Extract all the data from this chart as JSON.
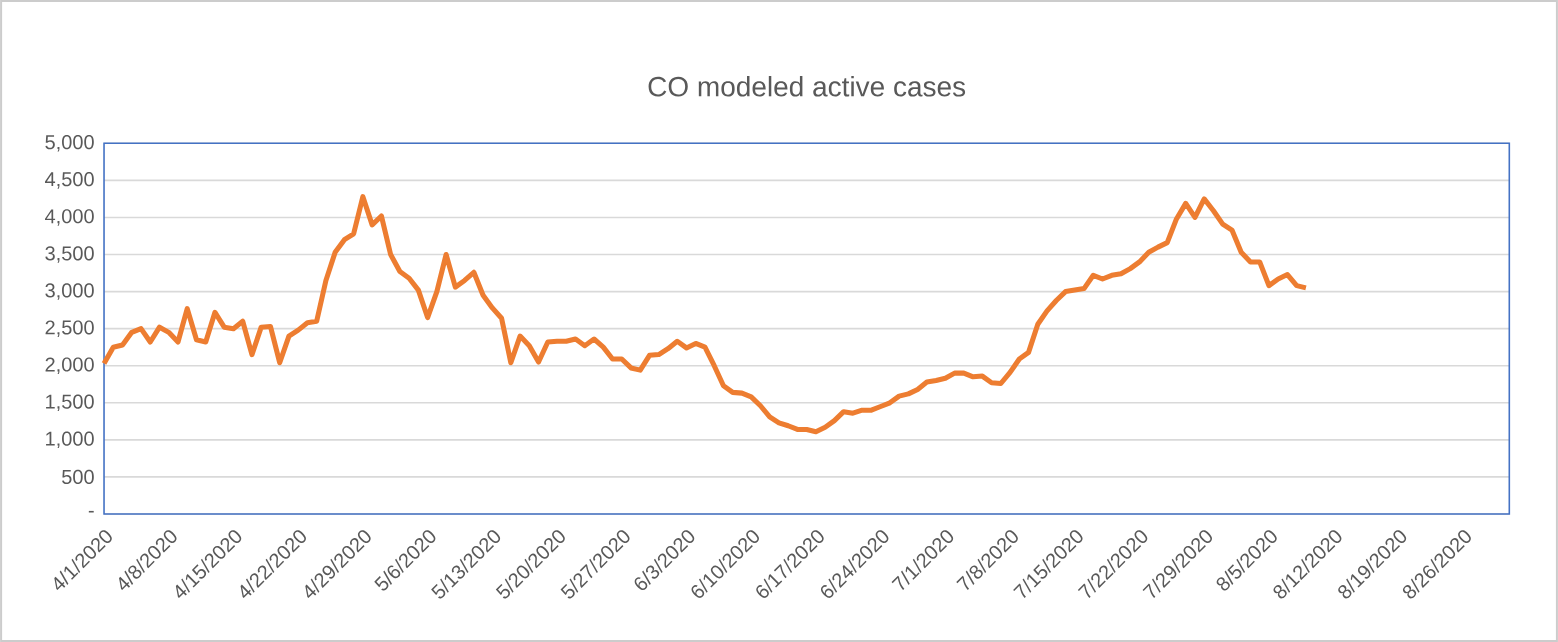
{
  "chart_data": {
    "type": "line",
    "title": "CO modeled active cases",
    "x": [
      "2020-04-01",
      "2020-04-02",
      "2020-04-03",
      "2020-04-04",
      "2020-04-05",
      "2020-04-06",
      "2020-04-07",
      "2020-04-08",
      "2020-04-09",
      "2020-04-10",
      "2020-04-11",
      "2020-04-12",
      "2020-04-13",
      "2020-04-14",
      "2020-04-15",
      "2020-04-16",
      "2020-04-17",
      "2020-04-18",
      "2020-04-19",
      "2020-04-20",
      "2020-04-21",
      "2020-04-22",
      "2020-04-23",
      "2020-04-24",
      "2020-04-25",
      "2020-04-26",
      "2020-04-27",
      "2020-04-28",
      "2020-04-29",
      "2020-04-30",
      "2020-05-01",
      "2020-05-02",
      "2020-05-03",
      "2020-05-04",
      "2020-05-05",
      "2020-05-06",
      "2020-05-07",
      "2020-05-08",
      "2020-05-09",
      "2020-05-10",
      "2020-05-11",
      "2020-05-12",
      "2020-05-13",
      "2020-05-14",
      "2020-05-15",
      "2020-05-16",
      "2020-05-17",
      "2020-05-18",
      "2020-05-19",
      "2020-05-20",
      "2020-05-21",
      "2020-05-22",
      "2020-05-23",
      "2020-05-24",
      "2020-05-25",
      "2020-05-26",
      "2020-05-27",
      "2020-05-28",
      "2020-05-29",
      "2020-05-30",
      "2020-05-31",
      "2020-06-01",
      "2020-06-02",
      "2020-06-03",
      "2020-06-04",
      "2020-06-05",
      "2020-06-06",
      "2020-06-07",
      "2020-06-08",
      "2020-06-09",
      "2020-06-10",
      "2020-06-11",
      "2020-06-12",
      "2020-06-13",
      "2020-06-14",
      "2020-06-15",
      "2020-06-16",
      "2020-06-17",
      "2020-06-18",
      "2020-06-19",
      "2020-06-20",
      "2020-06-21",
      "2020-06-22",
      "2020-06-23",
      "2020-06-24",
      "2020-06-25",
      "2020-06-26",
      "2020-06-27",
      "2020-06-28",
      "2020-06-29",
      "2020-06-30",
      "2020-07-01",
      "2020-07-02",
      "2020-07-03",
      "2020-07-04",
      "2020-07-05",
      "2020-07-06",
      "2020-07-07",
      "2020-07-08",
      "2020-07-09",
      "2020-07-10",
      "2020-07-11",
      "2020-07-12",
      "2020-07-13",
      "2020-07-14",
      "2020-07-15",
      "2020-07-16",
      "2020-07-17",
      "2020-07-18",
      "2020-07-19",
      "2020-07-20",
      "2020-07-21",
      "2020-07-22",
      "2020-07-23",
      "2020-07-24",
      "2020-07-25",
      "2020-07-26",
      "2020-07-27",
      "2020-07-28",
      "2020-07-29",
      "2020-07-30",
      "2020-07-31",
      "2020-08-01",
      "2020-08-02",
      "2020-08-03",
      "2020-08-04",
      "2020-08-05",
      "2020-08-06",
      "2020-08-07",
      "2020-08-08",
      "2020-08-09"
    ],
    "series": [
      {
        "color": "#ed7d31",
        "values": [
          2030,
          2250,
          2280,
          2450,
          2500,
          2320,
          2520,
          2450,
          2320,
          2770,
          2350,
          2320,
          2720,
          2520,
          2500,
          2600,
          2150,
          2520,
          2530,
          2040,
          2400,
          2480,
          2580,
          2600,
          3150,
          3530,
          3700,
          3780,
          4280,
          3900,
          4020,
          3500,
          3270,
          3180,
          3020,
          2650,
          3000,
          3500,
          3060,
          3150,
          3260,
          2950,
          2780,
          2640,
          2040,
          2400,
          2270,
          2050,
          2320,
          2330,
          2330,
          2360,
          2270,
          2360,
          2250,
          2090,
          2090,
          1970,
          1940,
          2140,
          2150,
          2230,
          2330,
          2240,
          2300,
          2250,
          2000,
          1730,
          1640,
          1630,
          1580,
          1460,
          1310,
          1230,
          1190,
          1140,
          1140,
          1110,
          1170,
          1260,
          1380,
          1360,
          1400,
          1400,
          1450,
          1500,
          1590,
          1620,
          1680,
          1780,
          1800,
          1830,
          1900,
          1900,
          1850,
          1860,
          1770,
          1760,
          1910,
          2090,
          2180,
          2560,
          2740,
          2880,
          3000,
          3020,
          3040,
          3220,
          3170,
          3220,
          3240,
          3310,
          3400,
          3530,
          3600,
          3660,
          3980,
          4190,
          4000,
          4250,
          4090,
          3910,
          3830,
          3530,
          3400,
          3400,
          3080,
          3170,
          3230,
          3080,
          3050
        ]
      }
    ],
    "xlim": [
      "2020-04-01",
      "2020-08-31"
    ],
    "xticks": [
      {
        "value": "2020-04-01",
        "label": "4/1/2020"
      },
      {
        "value": "2020-04-08",
        "label": "4/8/2020"
      },
      {
        "value": "2020-04-15",
        "label": "4/15/2020"
      },
      {
        "value": "2020-04-22",
        "label": "4/22/2020"
      },
      {
        "value": "2020-04-29",
        "label": "4/29/2020"
      },
      {
        "value": "2020-05-06",
        "label": "5/6/2020"
      },
      {
        "value": "2020-05-13",
        "label": "5/13/2020"
      },
      {
        "value": "2020-05-20",
        "label": "5/20/2020"
      },
      {
        "value": "2020-05-27",
        "label": "5/27/2020"
      },
      {
        "value": "2020-06-03",
        "label": "6/3/2020"
      },
      {
        "value": "2020-06-10",
        "label": "6/10/2020"
      },
      {
        "value": "2020-06-17",
        "label": "6/17/2020"
      },
      {
        "value": "2020-06-24",
        "label": "6/24/2020"
      },
      {
        "value": "2020-07-01",
        "label": "7/1/2020"
      },
      {
        "value": "2020-07-08",
        "label": "7/8/2020"
      },
      {
        "value": "2020-07-15",
        "label": "7/15/2020"
      },
      {
        "value": "2020-07-22",
        "label": "7/22/2020"
      },
      {
        "value": "2020-07-29",
        "label": "7/29/2020"
      },
      {
        "value": "2020-08-05",
        "label": "8/5/2020"
      },
      {
        "value": "2020-08-12",
        "label": "8/12/2020"
      },
      {
        "value": "2020-08-19",
        "label": "8/19/2020"
      },
      {
        "value": "2020-08-26",
        "label": "8/26/2020"
      }
    ],
    "ylim": [
      0,
      5000
    ],
    "yticks": [
      {
        "value": 0,
        "label": "-"
      },
      {
        "value": 500,
        "label": "500"
      },
      {
        "value": 1000,
        "label": "1,000"
      },
      {
        "value": 1500,
        "label": "1,500"
      },
      {
        "value": 2000,
        "label": "2,000"
      },
      {
        "value": 2500,
        "label": "2,500"
      },
      {
        "value": 3000,
        "label": "3,000"
      },
      {
        "value": 3500,
        "label": "3,500"
      },
      {
        "value": 4000,
        "label": "4,000"
      },
      {
        "value": 4500,
        "label": "4,500"
      },
      {
        "value": 5000,
        "label": "5,000"
      }
    ],
    "grid": "y",
    "marker": "none",
    "line_style": "solid"
  }
}
